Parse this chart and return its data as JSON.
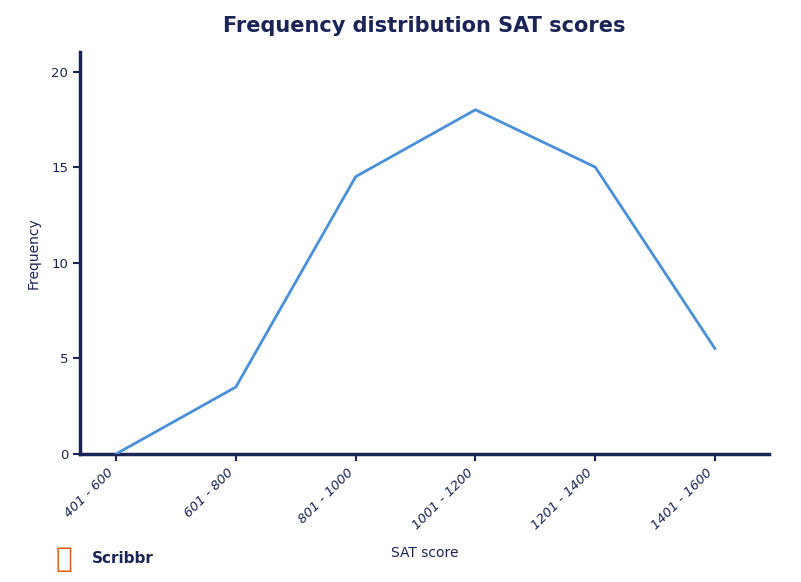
{
  "title": "Frequency distribution SAT scores",
  "xlabel": "SAT score",
  "ylabel": "Frequency",
  "categories": [
    "401 - 600",
    "601 - 800",
    "801 - 1000",
    "1001 - 1200",
    "1201 - 1400",
    "1401 - 1600"
  ],
  "x_positions": [
    0,
    1,
    2,
    3,
    4,
    5
  ],
  "frequencies": [
    0,
    3.5,
    14.5,
    18,
    15,
    5.5
  ],
  "line_color": "#4a90d9",
  "axis_color": "#1a2456",
  "text_color": "#1a2456",
  "background_color": "#ffffff",
  "ylim": [
    0,
    21
  ],
  "yticks": [
    0,
    5,
    10,
    15,
    20
  ],
  "title_fontsize": 15,
  "axis_label_fontsize": 10,
  "tick_fontsize": 9.5,
  "line_width": 2.0,
  "scribbr_color": "#e8601c",
  "scribbr_text_color": "#1a2456"
}
